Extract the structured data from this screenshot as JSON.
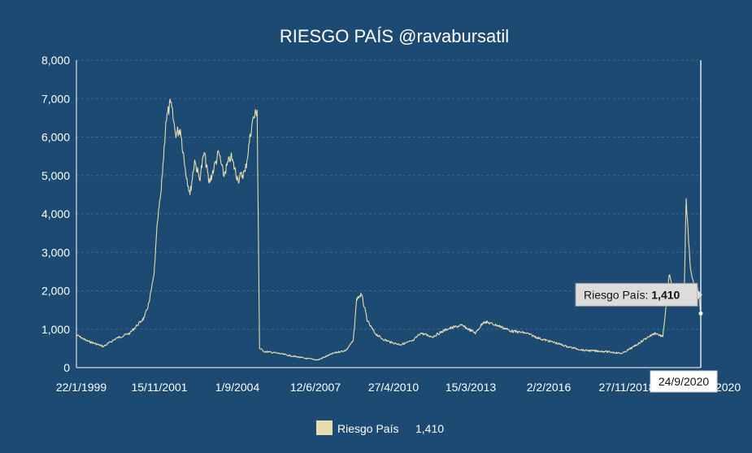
{
  "colors": {
    "background": "#1d4a72",
    "line": "#e8dcb0",
    "axis": "#ffffff",
    "grid": "#3e6a92",
    "tooltip_bg": "#dcdcdc"
  },
  "chart_data": {
    "type": "line",
    "title": "RIESGO PAÍS @ravabursatil",
    "xlabel": "",
    "ylabel": "",
    "ylim": [
      0,
      8000
    ],
    "yticks": [
      "0",
      "1,000",
      "2,000",
      "3,000",
      "4,000",
      "5,000",
      "6,000",
      "7,000",
      "8,000"
    ],
    "xticks": [
      "22/1/1999",
      "15/11/2001",
      "1/9/2004",
      "12/6/2007",
      "27/4/2010",
      "15/3/2013",
      "2/2/2016",
      "27/11/2018",
      "24/9/2020"
    ],
    "grid": true,
    "legend_position": "bottom",
    "series": [
      {
        "name": "Riesgo País",
        "x": [
          "1999-01-22",
          "1999-06-01",
          "2000-01-01",
          "2000-06-01",
          "2000-12-01",
          "2001-03-01",
          "2001-06-01",
          "2001-08-01",
          "2001-10-01",
          "2001-11-15",
          "2002-01-01",
          "2002-03-01",
          "2002-05-01",
          "2002-07-01",
          "2002-09-01",
          "2002-11-01",
          "2003-01-01",
          "2003-03-01",
          "2003-05-01",
          "2003-07-01",
          "2003-09-01",
          "2003-11-01",
          "2004-01-01",
          "2004-03-01",
          "2004-06-01",
          "2004-09-01",
          "2004-12-01",
          "2005-03-01",
          "2005-05-01",
          "2005-06-01",
          "2005-08-01",
          "2006-01-01",
          "2006-06-01",
          "2007-01-01",
          "2007-06-12",
          "2008-01-01",
          "2008-06-01",
          "2008-09-01",
          "2008-10-15",
          "2008-12-15",
          "2009-03-01",
          "2009-06-01",
          "2009-09-01",
          "2010-01-01",
          "2010-04-27",
          "2010-10-01",
          "2011-01-01",
          "2011-06-01",
          "2011-12-01",
          "2012-06-01",
          "2012-12-01",
          "2013-03-15",
          "2013-09-01",
          "2014-03-01",
          "2014-09-01",
          "2015-03-01",
          "2015-09-01",
          "2016-02-02",
          "2016-09-01",
          "2017-06-01",
          "2018-01-01",
          "2018-06-01",
          "2018-11-27",
          "2019-03-01",
          "2019-06-01",
          "2019-08-20",
          "2019-10-01",
          "2020-01-01",
          "2020-03-01",
          "2020-03-23",
          "2020-04-15",
          "2020-05-15",
          "2020-06-15",
          "2020-07-15",
          "2020-08-15",
          "2020-09-24"
        ],
        "values": [
          850,
          700,
          550,
          750,
          900,
          1100,
          1300,
          1700,
          2400,
          3800,
          4600,
          6400,
          6900,
          6100,
          6200,
          5200,
          4500,
          5400,
          4900,
          5600,
          4800,
          5200,
          5600,
          5000,
          5500,
          4900,
          5100,
          6400,
          6700,
          500,
          420,
          380,
          320,
          240,
          200,
          380,
          450,
          700,
          1800,
          1900,
          1200,
          900,
          750,
          650,
          600,
          700,
          900,
          800,
          1000,
          1100,
          900,
          1200,
          1100,
          950,
          900,
          750,
          650,
          550,
          450,
          420,
          370,
          550,
          800,
          900,
          800,
          2400,
          2100,
          1900,
          2200,
          4400,
          3600,
          2600,
          2300,
          2000,
          2100,
          1410
        ]
      }
    ],
    "annotations": {
      "crosshair_date": "24/9/2020",
      "tooltip_label": "Riesgo País:",
      "tooltip_value": "1,410",
      "legend_value": "1,410"
    }
  }
}
